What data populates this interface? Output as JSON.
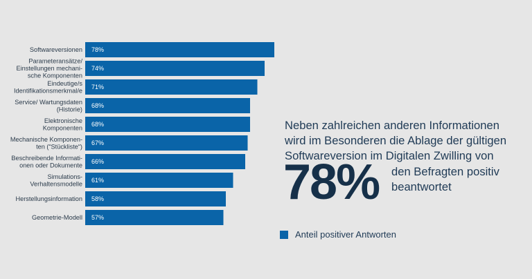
{
  "chart_data": {
    "type": "bar",
    "orientation": "horizontal",
    "categories": [
      [
        "Softwareversionen"
      ],
      [
        "Parameteransätze/",
        "Einstellungen mechani-",
        "sche Komponenten"
      ],
      [
        "Eindeutige/s",
        "Identifikationsmerkmal/e"
      ],
      [
        "Service/ Wartungsdaten",
        "(Historie)"
      ],
      [
        "Elektronische",
        "Komponenten"
      ],
      [
        "Mechanische Komponen-",
        "ten (“Stückliste“)"
      ],
      [
        "Beschreibende Informati-",
        "onen oder Dokumente"
      ],
      [
        "Simulations-",
        "Verhaltensmodelle"
      ],
      [
        "Herstellungsinformation"
      ],
      [
        "Geometrie-Modell"
      ]
    ],
    "values": [
      78,
      74,
      71,
      68,
      68,
      67,
      66,
      61,
      58,
      57
    ],
    "value_labels": [
      "78%",
      "74%",
      "71%",
      "68%",
      "68%",
      "67%",
      "66%",
      "61%",
      "58%",
      "57%"
    ],
    "series": [
      {
        "name": "Anteil positiver Antworten",
        "values": [
          78,
          74,
          71,
          68,
          68,
          67,
          66,
          61,
          58,
          57
        ]
      }
    ],
    "xlim": [
      0,
      100
    ],
    "grid": false,
    "bar_color": "#0a64a8",
    "legend_position": "bottom-right"
  },
  "annotation": {
    "headline": "Neben zahlreichen anderen Informationen wird im Besonderen die Ablage der gültigen Softwareversion im Digitalen Zwilling von",
    "big_number": "78%",
    "caption": "den Befragten positiv beantwortet"
  },
  "legend": {
    "label": "Anteil positiver Antworten"
  },
  "colors": {
    "background": "#e6e6e6",
    "bar": "#0a64a8",
    "text": "#1f3a55",
    "big_number": "#163049"
  }
}
